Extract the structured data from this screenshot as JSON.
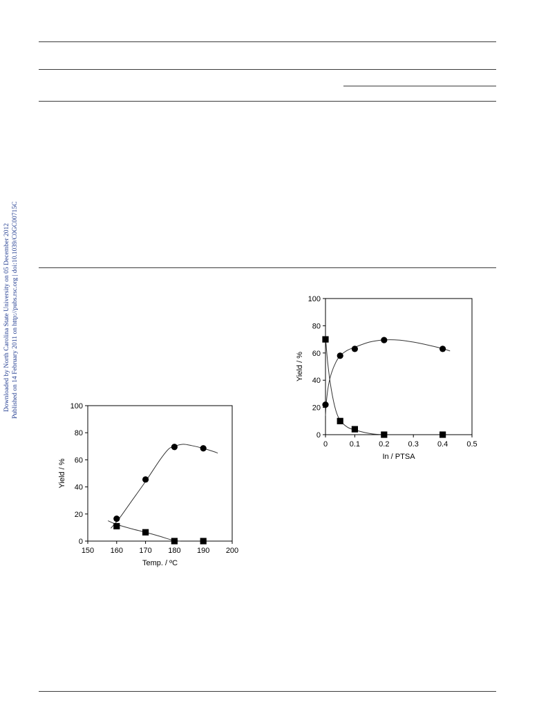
{
  "sidebar": {
    "line1": "Downloaded by North Carolina State University on 05 December 2012",
    "line2": "Published on 14 February 2011 on http://pubs.rsc.org | doi:10.1039/C0GC00715C"
  },
  "chart_data": [
    {
      "type": "scatter",
      "xlabel": "Temp. / ºC",
      "ylabel": "Yield / %",
      "xlim": [
        150,
        200
      ],
      "ylim": [
        0,
        100
      ],
      "xticks": [
        150,
        160,
        170,
        180,
        190,
        200
      ],
      "yticks": [
        0,
        20,
        40,
        60,
        80,
        100
      ],
      "series": [
        {
          "marker": "circle",
          "x": [
            160,
            170,
            180,
            190
          ],
          "y": [
            16.5,
            45.5,
            69.5,
            68.5
          ]
        },
        {
          "marker": "square",
          "x": [
            160,
            170,
            180,
            190
          ],
          "y": [
            11,
            6.5,
            0,
            0
          ]
        }
      ]
    },
    {
      "type": "scatter",
      "xlabel": "In / PTSA",
      "ylabel": "Yield / %",
      "xlim": [
        0,
        0.5
      ],
      "ylim": [
        0,
        100
      ],
      "xticks": [
        0,
        0.1,
        0.2,
        0.3,
        0.4,
        0.5
      ],
      "yticks": [
        0,
        20,
        40,
        60,
        80,
        100
      ],
      "series": [
        {
          "marker": "circle",
          "x": [
            0,
            0.05,
            0.1,
            0.2,
            0.4
          ],
          "y": [
            22,
            58,
            63,
            69.5,
            63
          ]
        },
        {
          "marker": "square",
          "x": [
            0,
            0.05,
            0.1,
            0.2,
            0.4
          ],
          "y": [
            70,
            10,
            4,
            0,
            0
          ]
        }
      ]
    }
  ]
}
